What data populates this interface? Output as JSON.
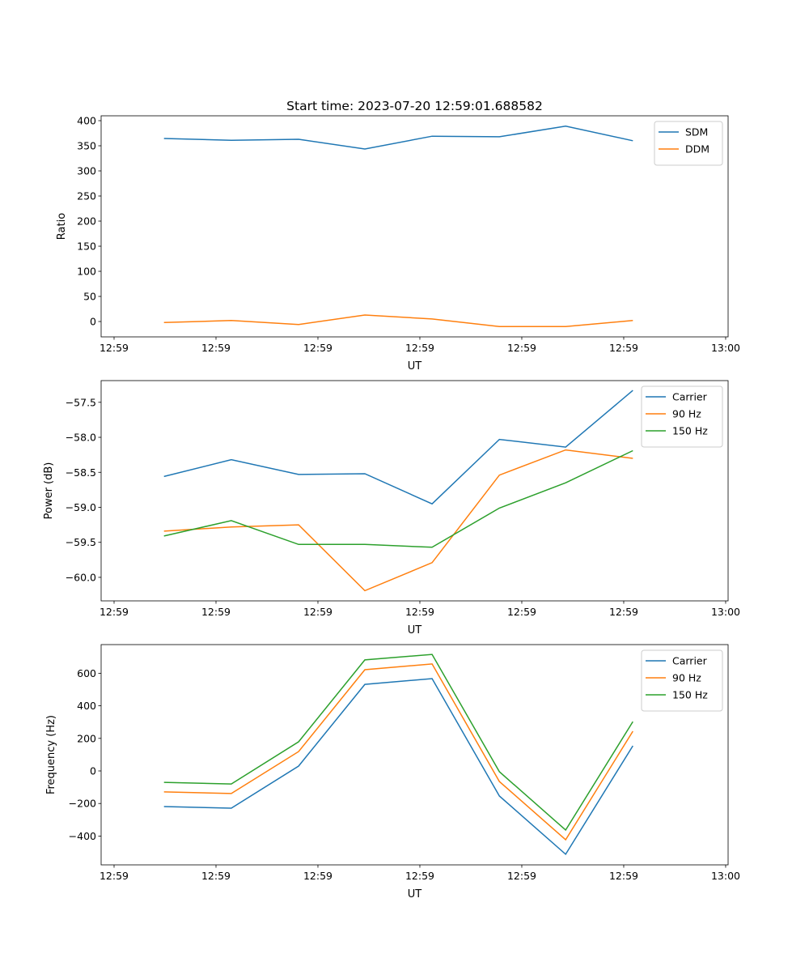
{
  "chart_data": {
    "type": "line",
    "title": "Start time: 2023-07-20 12:59:01.688582",
    "x_unit": "seconds after 12:59:00",
    "x": [
      4.9,
      11.5,
      18.1,
      24.6,
      31.2,
      37.8,
      44.3,
      50.9
    ],
    "xlim": [
      -1.27,
      60.24
    ],
    "xticks": [
      0,
      10,
      20,
      30,
      40,
      50,
      60
    ],
    "xtick_labels": [
      "12:59",
      "12:59",
      "12:59",
      "12:59",
      "12:59",
      "12:59",
      "13:00"
    ],
    "subplots": [
      {
        "xlabel": "UT",
        "ylabel": "Ratio",
        "ylim": [
          -30.6,
          409.7
        ],
        "yticks": [
          0,
          50,
          100,
          150,
          200,
          250,
          300,
          350,
          400
        ],
        "ytick_labels": [
          "0",
          "50",
          "100",
          "150",
          "200",
          "250",
          "300",
          "350",
          "400"
        ],
        "legend": "top-right",
        "series": [
          {
            "name": "SDM",
            "color": "#1f77b4",
            "values": [
              364.5,
              361,
              363,
              343.5,
              369,
              368,
              389,
              360
            ]
          },
          {
            "name": "DDM",
            "color": "#ff7f0e",
            "values": [
              -2,
              2,
              -6,
              13,
              5,
              -10,
              -10,
              2
            ]
          }
        ]
      },
      {
        "xlabel": "UT",
        "ylabel": "Power (dB)",
        "ylim": [
          -60.336,
          -57.19
        ],
        "yticks": [
          -60.0,
          -59.5,
          -59.0,
          -58.5,
          -58.0,
          -57.5
        ],
        "ytick_labels": [
          "−60.0",
          "−59.5",
          "−59.0",
          "−58.5",
          "−58.0",
          "−57.5"
        ],
        "legend": "top-right",
        "series": [
          {
            "name": "Carrier",
            "color": "#1f77b4",
            "values": [
              -58.56,
              -58.32,
              -58.53,
              -58.52,
              -58.95,
              -58.03,
              -58.14,
              -57.33
            ]
          },
          {
            "name": "90 Hz",
            "color": "#ff7f0e",
            "values": [
              -59.34,
              -59.28,
              -59.25,
              -60.19,
              -59.79,
              -58.54,
              -58.18,
              -58.3
            ]
          },
          {
            "name": "150 Hz",
            "color": "#2ca02c",
            "values": [
              -59.41,
              -59.19,
              -59.53,
              -59.53,
              -59.57,
              -59.01,
              -58.65,
              -58.19
            ]
          }
        ]
      },
      {
        "xlabel": "UT",
        "ylabel": "Frequency (Hz)",
        "ylim": [
          -577,
          776
        ],
        "yticks": [
          -400,
          -200,
          0,
          200,
          400,
          600
        ],
        "ytick_labels": [
          "−400",
          "−200",
          "0",
          "200",
          "400",
          "600"
        ],
        "legend": "top-right",
        "series": [
          {
            "name": "Carrier",
            "color": "#1f77b4",
            "values": [
              -219,
              -229,
              30,
              532,
              567,
              -154,
              -512,
              154
            ]
          },
          {
            "name": "90 Hz",
            "color": "#ff7f0e",
            "values": [
              -129,
              -139,
              119,
              622,
              657,
              -65,
              -423,
              244
            ]
          },
          {
            "name": "150 Hz",
            "color": "#2ca02c",
            "values": [
              -70,
              -80,
              179,
              682,
              716,
              -5,
              -363,
              303
            ]
          }
        ]
      }
    ]
  }
}
